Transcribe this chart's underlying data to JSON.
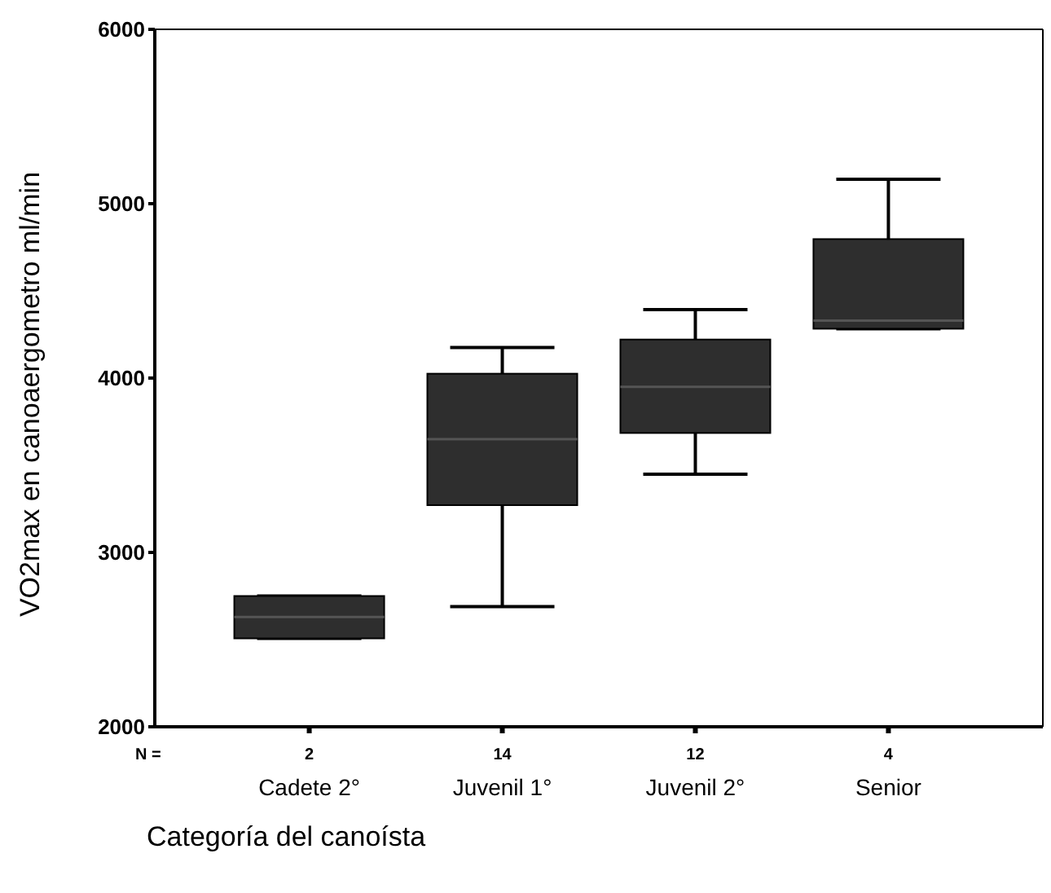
{
  "chart_data": {
    "type": "box",
    "xlabel": "Categoría del canoísta",
    "ylabel": "VO2max en canoaergometro ml/min",
    "categories": [
      "Cadete 2°",
      "Juvenil 1°",
      "Juvenil 2°",
      "Senior"
    ],
    "series": [
      {
        "color": "#2e2e2e",
        "boxes": [
          {
            "low": 2507,
            "q1": 2507,
            "median": 2630,
            "q3": 2750,
            "high": 2750
          },
          {
            "low": 2689,
            "q1": 3271,
            "median": 3650,
            "q3": 4025,
            "high": 4175
          },
          {
            "low": 3449,
            "q1": 3685,
            "median": 3950,
            "q3": 4221,
            "high": 4393
          },
          {
            "low": 4283,
            "q1": 4283,
            "median": 4330,
            "q3": 4797,
            "high": 5140
          }
        ]
      }
    ],
    "ylim": [
      2000,
      6000
    ],
    "yticks": [
      2000,
      3000,
      4000,
      5000,
      6000
    ],
    "annotations": [
      "N =",
      "2",
      "14",
      "12",
      "4"
    ]
  }
}
